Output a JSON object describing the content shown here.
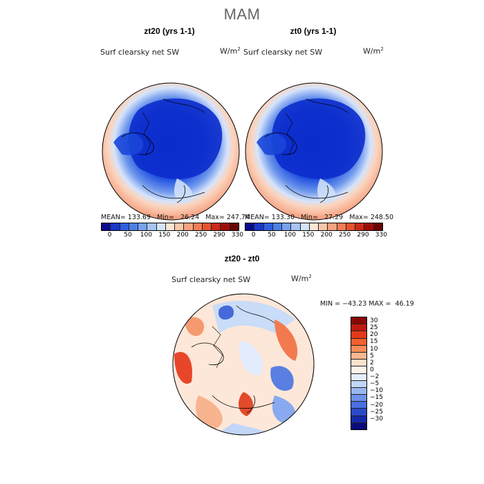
{
  "figure": {
    "title": "MAM",
    "variable": "Surf clearsky net SW",
    "units_base": "W/m",
    "units_exp": "2"
  },
  "panels": [
    {
      "title": "zt20 (yrs 1-1)",
      "stats": "MEAN= 133.69   Min=   26.24   Max= 247.74"
    },
    {
      "title": "zt0 (yrs 1-1)",
      "stats": "MEAN= 133.30   Min=   27.29   Max= 248.50"
    }
  ],
  "diff_panel": {
    "title": "zt20 - zt0",
    "stats": "MIN = −43.23 MAX =  46.19"
  },
  "abs_colorbar": {
    "colors": [
      "#0a0a8c",
      "#1838c8",
      "#2f5fe0",
      "#4d7fe8",
      "#78a2ee",
      "#a6c4f4",
      "#d4e4fa",
      "#fde5d3",
      "#fbc7ab",
      "#f8a27e",
      "#f37c57",
      "#e6532f",
      "#cb2a17",
      "#9e0d0a",
      "#6b0404"
    ],
    "labels": [
      "0",
      "50",
      "100",
      "150",
      "200",
      "250",
      "290",
      "330"
    ]
  },
  "diff_colorbar": {
    "colors": [
      "#8a0707",
      "#bf1a0e",
      "#e2391a",
      "#f1602f",
      "#f68c57",
      "#f9b690",
      "#fde0cc",
      "#fff4ec",
      "#e6eefc",
      "#c3d6f7",
      "#98b6f0",
      "#6e92e8",
      "#4a6fe0",
      "#2a4acc",
      "#1528a8",
      "#0a0a7a"
    ],
    "labels": [
      "30",
      "25",
      "20",
      "15",
      "10",
      "5",
      "2",
      "0",
      "−2",
      "−5",
      "−10",
      "−15",
      "−20",
      "−25",
      "−30"
    ]
  }
}
